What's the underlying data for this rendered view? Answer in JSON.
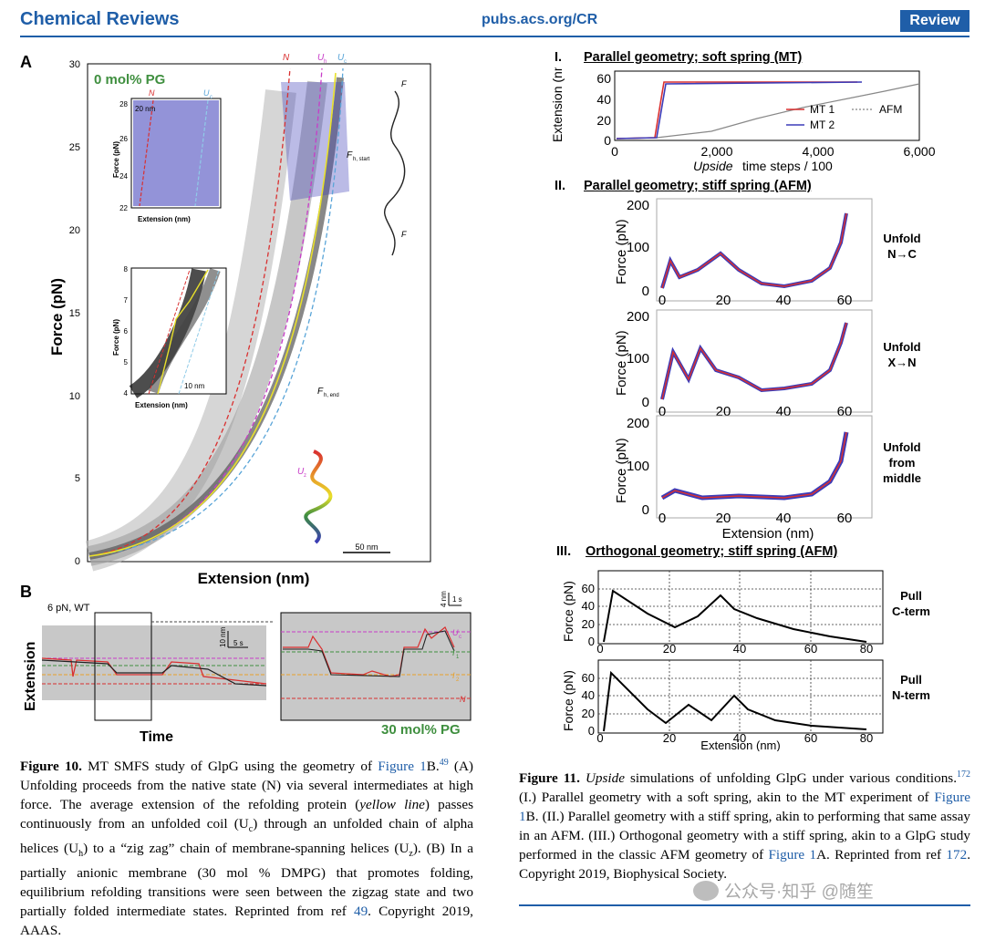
{
  "header": {
    "journal": "Chemical Reviews",
    "url": "pubs.acs.org/CR",
    "badge": "Review"
  },
  "fig10": {
    "panel_a_letter": "A",
    "panel_b_letter": "B",
    "condition_a": "0 mol% PG",
    "condition_b": "30 mol% PG",
    "xlabel": "Extension (nm)",
    "ylabel": "Force (pN)",
    "yticks": [
      "0",
      "5",
      "10",
      "15",
      "20",
      "25",
      "30"
    ],
    "state_labels": [
      "N",
      "U",
      "U"
    ],
    "state_subs": [
      "h",
      "c"
    ],
    "annotations": [
      "F",
      "F",
      "F",
      "F"
    ],
    "fstart": "h, start",
    "fend": "h, end",
    "uz": "U",
    "uz_sub": "z",
    "scale_bar": "50 nm",
    "inset1": {
      "ylabel": "Force (pN)",
      "xlabel": "Extension (nm)",
      "yticks": [
        "22",
        "24",
        "26",
        "28"
      ],
      "scale": "20 nm",
      "n_label": "N",
      "u_label": "U",
      "u_sub": "c"
    },
    "inset2": {
      "ylabel": "Force (pN)",
      "xlabel": "Extension (nm)",
      "yticks": [
        "4",
        "5",
        "6",
        "7",
        "8"
      ],
      "scale": "10 nm"
    },
    "b_condition": "6 pN, WT",
    "b_xlabel": "Time",
    "b_ylabel": "Extension",
    "b_scale_y": "10 nm",
    "b_scale_x": "5 s",
    "b2_scale_y": "4 nm",
    "b2_scale_x": "1 s",
    "b2_labels": [
      "U",
      "I",
      "I",
      "N"
    ],
    "b2_subs": [
      "c",
      "1",
      "2"
    ],
    "caption": {
      "label": "Figure 10.",
      "text1": " MT SMFS study of GlpG using the geometry of ",
      "link1": "Figure 1",
      "text2": "B.",
      "ref1": "49",
      "text3": " (A) Unfolding proceeds from the native state (N) via several intermediates at high force. The average extension of the refolding protein (",
      "italic1": "yellow line",
      "text4": ") passes continuously from an unfolded coil (U",
      "sub1": "c",
      "text5": ") through an unfolded chain of alpha helices (U",
      "sub2": "h",
      "text6": ") to a “zig zag” chain of membrane-spanning helices (U",
      "sub3": "z",
      "text7": "). (B) In a partially anionic membrane (30 mol % DMPG) that promotes folding, equilibrium refolding transitions were seen between the zigzag state and two partially folded intermediate states. Reprinted from ref ",
      "link2": "49",
      "text8": ". Copyright 2019, AAAS."
    }
  },
  "fig11": {
    "panel_i": {
      "roman": "I.",
      "title": "Parallel geometry; soft spring (MT)",
      "ylabel": "Extension (nm)",
      "xlabel_italic": "Upside",
      "xlabel_rest": " time steps / 100",
      "xticks": [
        "0",
        "2,000",
        "4,000",
        "6,000"
      ],
      "yticks": [
        "0",
        "20",
        "40",
        "60"
      ],
      "legend": [
        "MT 1",
        "MT 2",
        "AFM"
      ]
    },
    "panel_ii": {
      "roman": "II.",
      "title": "Parallel geometry; stiff spring (AFM)",
      "ylabel": "Force (pN)",
      "xlabel": "Extension (nm)",
      "yticks": [
        "0",
        "100",
        "200"
      ],
      "xticks": [
        "0",
        "20",
        "40",
        "60"
      ],
      "rows": [
        {
          "label_l1": "Unfold",
          "label_l2": "N→C",
          "label_l3": ""
        },
        {
          "label_l1": "Unfold",
          "label_l2": "X→N",
          "label_l3": ""
        },
        {
          "label_l1": "Unfold",
          "label_l2": "from",
          "label_l3": "middle"
        }
      ]
    },
    "panel_iii": {
      "roman": "III.",
      "title": "Orthogonal geometry; stiff spring (AFM)",
      "ylabel": "Force (pN)",
      "xlabel": "Extension (nm)",
      "yticks": [
        "0",
        "20",
        "40",
        "60"
      ],
      "xticks": [
        "0",
        "20",
        "40",
        "60",
        "80"
      ],
      "rows": [
        {
          "label_l1": "Pull",
          "label_l2": "C-term"
        },
        {
          "label_l1": "Pull",
          "label_l2": "N-term"
        }
      ]
    },
    "caption": {
      "label": "Figure 11.",
      "italic1": "Upside",
      "text1": " simulations of unfolding GlpG under various conditions.",
      "ref1": "172",
      "text2": " (I.) Parallel geometry with a soft spring, akin to the MT experiment of ",
      "link1": "Figure 1",
      "text3": "B. (II.) Parallel geometry with a stiff spring, akin to performing that same assay in an AFM. (III.) Orthogonal geometry with a stiff spring, akin to a GlpG study performed in the classic AFM geometry of ",
      "link2": "Figure 1",
      "text4": "A. Reprinted from ref ",
      "link3": "172",
      "text5": ". Copyright 2019, Biophysical Society."
    }
  },
  "watermark": "公众号·知乎 @随笙",
  "colors": {
    "accent": "#1f5ea8",
    "red": "#d93030",
    "blue": "#3b3bb8",
    "green": "#3f8f3f",
    "magenta": "#c83cc8",
    "yellow": "#e8e02a"
  }
}
